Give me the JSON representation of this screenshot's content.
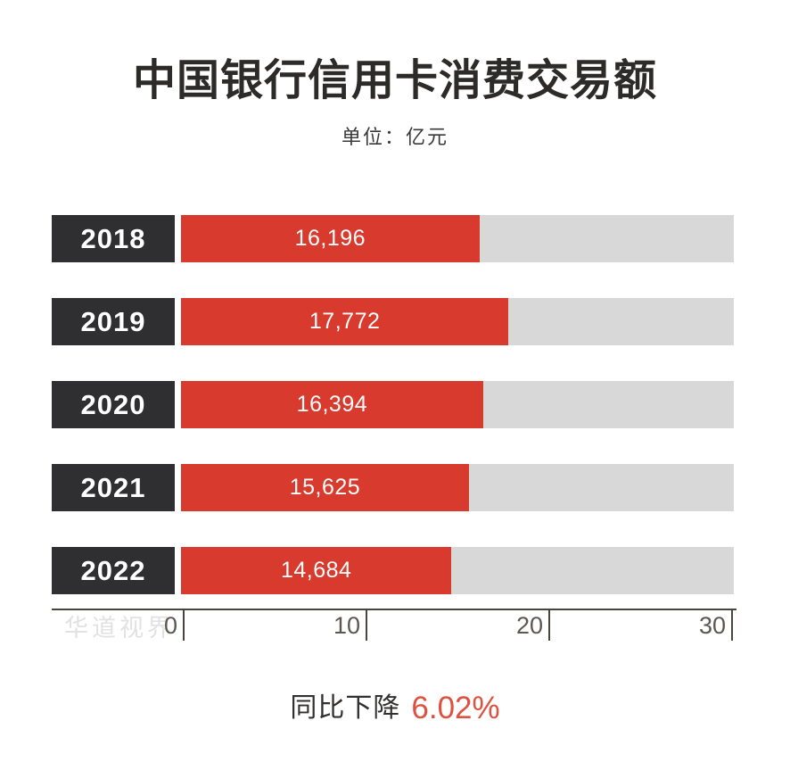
{
  "title": "中国银行信用卡消费交易额",
  "subtitle": "单位：亿元",
  "watermark": "华道视界",
  "footnote": {
    "prefix": "同比下降",
    "value": "6.02%"
  },
  "colors": {
    "bar_red": "#d83a2d",
    "track_gray": "#d8d8d8",
    "year_box_dark": "#2f2f31",
    "axis_line": "#4a443e",
    "tick_label": "#5e5750",
    "accent_red": "#e0503f",
    "dark_text": "#2d2b29",
    "watermark_gray": "#e2e2e2"
  },
  "chart_data": {
    "type": "bar",
    "orientation": "horizontal",
    "title": "中国银行信用卡消费交易额",
    "unit_label": "单位：亿元",
    "categories": [
      "2018",
      "2019",
      "2020",
      "2021",
      "2022"
    ],
    "values": [
      16196,
      17772,
      16394,
      15625,
      14684
    ],
    "value_labels": [
      "16,196",
      "17,772",
      "16,394",
      "15,625",
      "14,684"
    ],
    "xlim": [
      0,
      30000
    ],
    "axis_ticks": [
      0,
      10,
      20,
      30
    ],
    "tick_labels": [
      "0",
      "10",
      "20",
      "30"
    ],
    "axis_unit_scale": 1000,
    "grid": false,
    "legend": false,
    "annotation": "同比下降 6.02%"
  }
}
